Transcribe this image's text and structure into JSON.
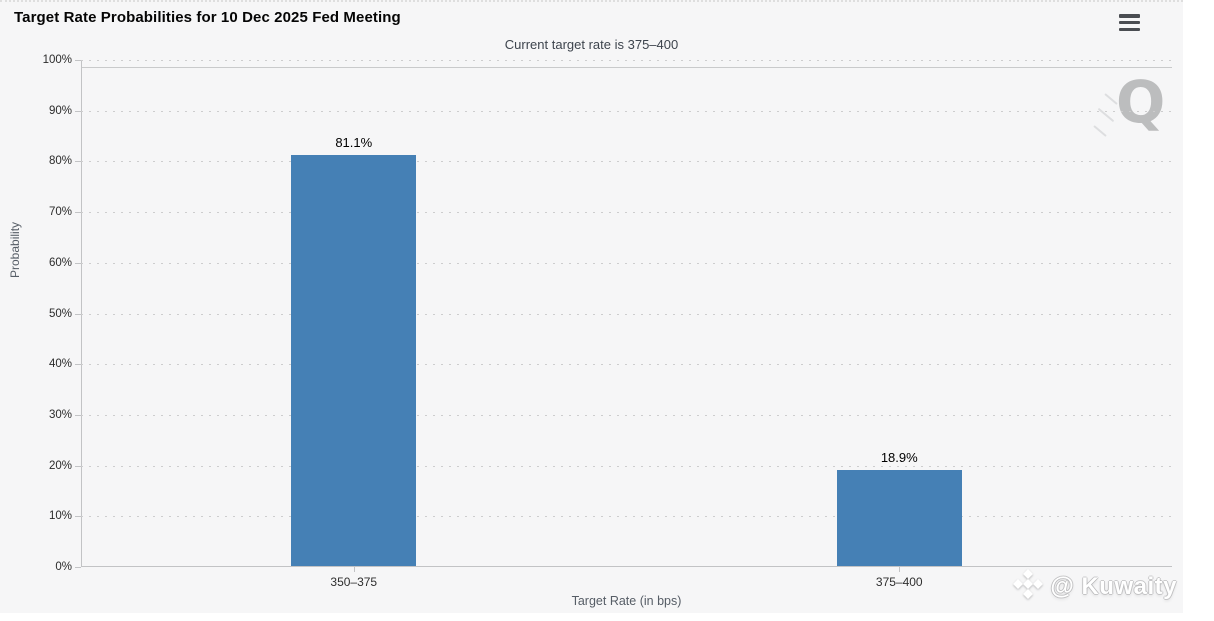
{
  "header": {
    "title": "Target Rate Probabilities for 10 Dec 2025 Fed Meeting"
  },
  "menu": {
    "icon": "hamburger-menu-icon"
  },
  "chart_data": {
    "type": "bar",
    "title": "Current target rate is 375–400",
    "categories": [
      "350–375",
      "375–400"
    ],
    "values": [
      81.1,
      18.9
    ],
    "value_labels": [
      "81.1%",
      "18.9%"
    ],
    "xlabel": "Target Rate (in bps)",
    "ylabel": "Probability",
    "ylim": [
      0,
      100
    ],
    "ytick_step": 10,
    "ytick_labels": [
      "0%",
      "10%",
      "20%",
      "30%",
      "40%",
      "50%",
      "60%",
      "70%",
      "80%",
      "90%",
      "100%"
    ],
    "bar_color": "#4580b5",
    "grid": "horizontal-dotted",
    "legend": "none"
  },
  "watermarks": {
    "q_text": "Q",
    "brand_icon": "binance-diamond-icon",
    "brand_text": "@ Kuwaity"
  }
}
